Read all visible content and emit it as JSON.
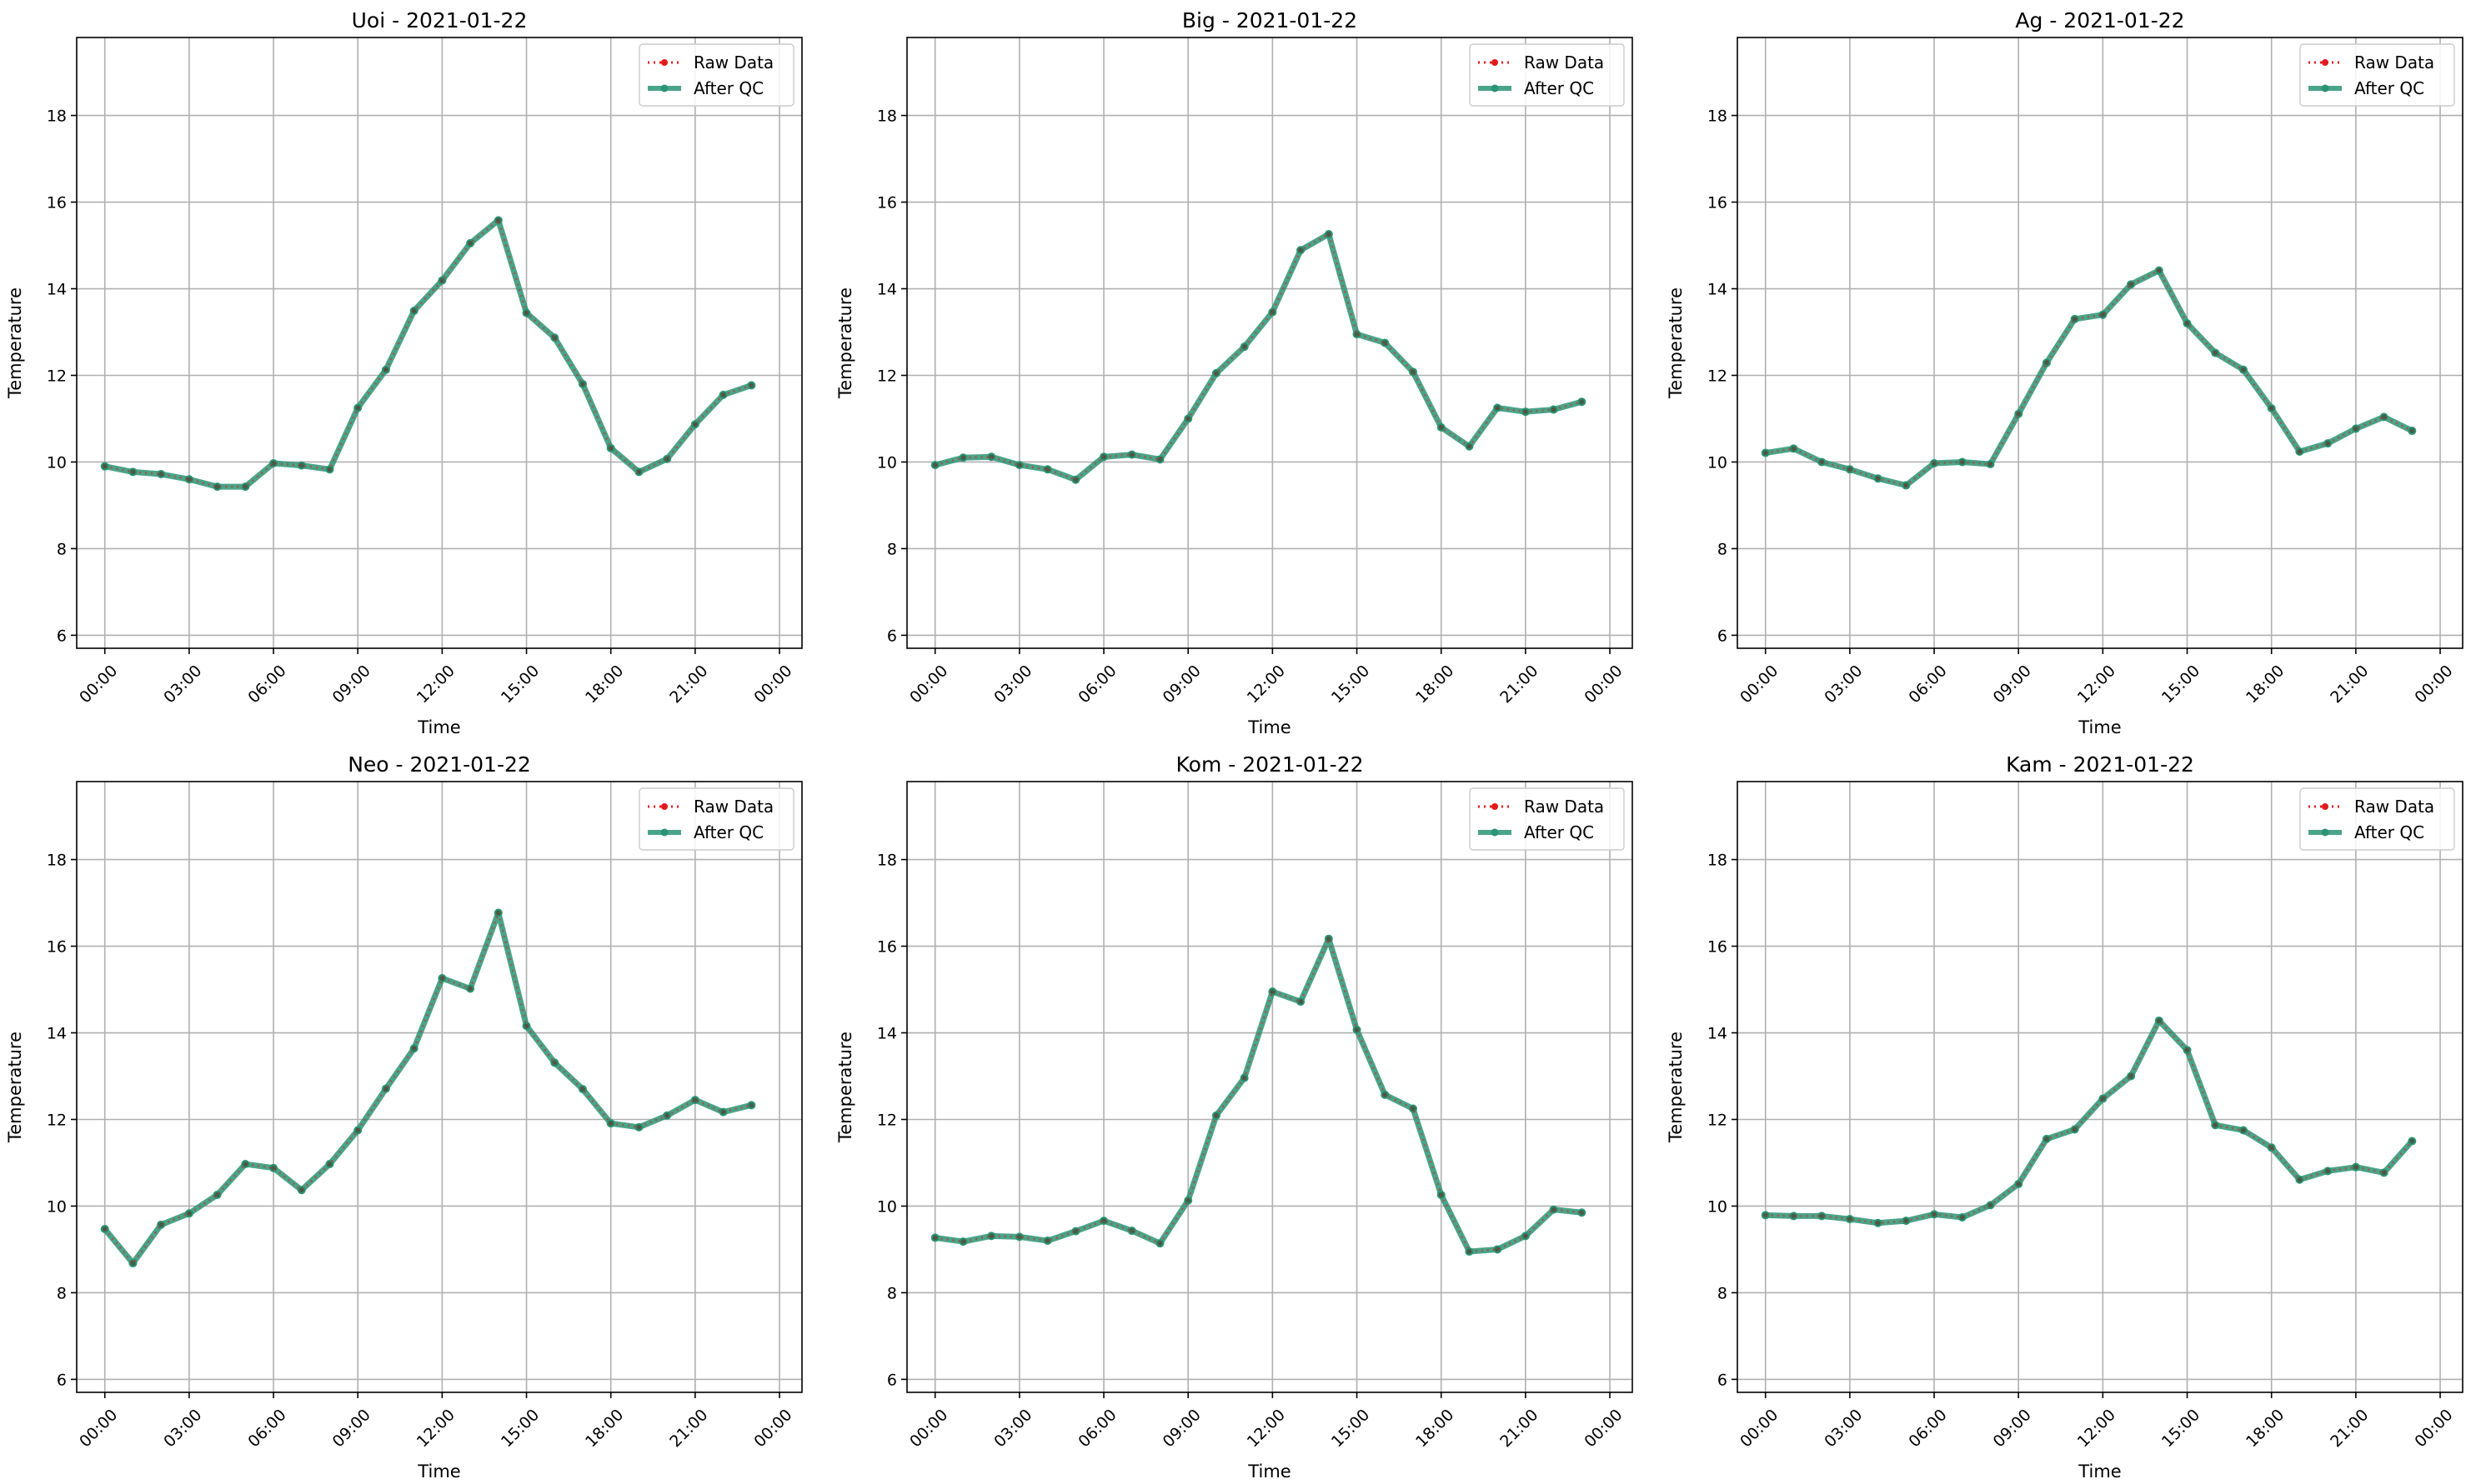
{
  "colors": {
    "raw": "#e31a1c",
    "qc": "#2a9474",
    "grid": "#b0b0b0",
    "axis": "#000000"
  },
  "chart_data": [
    {
      "type": "line",
      "title": "Uoi - 2021-01-22",
      "xlabel": "Time",
      "ylabel": "Temperature",
      "ylim": [
        5.7,
        19.8
      ],
      "yticks": [
        6,
        8,
        10,
        12,
        14,
        16,
        18
      ],
      "xticks": [
        "00:00",
        "03:00",
        "06:00",
        "09:00",
        "12:00",
        "15:00",
        "18:00",
        "21:00",
        "00:00"
      ],
      "x_hours": [
        0,
        1,
        2,
        3,
        4,
        5,
        6,
        7,
        8,
        9,
        10,
        11,
        12,
        13,
        14,
        15,
        16,
        17,
        18,
        19,
        20,
        21,
        22,
        23
      ],
      "grid": true,
      "legend": "top-right",
      "series": [
        {
          "name": "Raw Data",
          "style": "dotted",
          "values": [
            9.9,
            9.77,
            9.72,
            9.6,
            9.43,
            9.43,
            9.97,
            9.92,
            9.83,
            11.25,
            12.13,
            13.49,
            14.19,
            15.05,
            15.58,
            13.44,
            12.87,
            11.8,
            10.32,
            9.77,
            10.07,
            10.87,
            11.55,
            11.77
          ]
        },
        {
          "name": "After QC",
          "style": "solid",
          "values": [
            9.9,
            9.77,
            9.72,
            9.6,
            9.43,
            9.43,
            9.97,
            9.92,
            9.83,
            11.25,
            12.13,
            13.49,
            14.19,
            15.05,
            15.58,
            13.44,
            12.87,
            11.8,
            10.32,
            9.77,
            10.07,
            10.87,
            11.55,
            11.77
          ]
        }
      ]
    },
    {
      "type": "line",
      "title": "Big - 2021-01-22",
      "xlabel": "Time",
      "ylabel": "Temperature",
      "ylim": [
        5.7,
        19.8
      ],
      "yticks": [
        6,
        8,
        10,
        12,
        14,
        16,
        18
      ],
      "xticks": [
        "00:00",
        "03:00",
        "06:00",
        "09:00",
        "12:00",
        "15:00",
        "18:00",
        "21:00",
        "00:00"
      ],
      "x_hours": [
        0,
        1,
        2,
        3,
        4,
        5,
        6,
        7,
        8,
        9,
        10,
        11,
        12,
        13,
        14,
        15,
        16,
        17,
        18,
        19,
        20,
        21,
        22,
        23
      ],
      "grid": true,
      "legend": "top-right",
      "series": [
        {
          "name": "Raw Data",
          "style": "dotted",
          "values": [
            9.93,
            10.1,
            10.12,
            9.93,
            9.83,
            9.59,
            10.12,
            10.17,
            10.06,
            11.0,
            12.05,
            12.66,
            13.46,
            14.89,
            15.26,
            12.95,
            12.75,
            12.08,
            10.8,
            10.36,
            11.25,
            11.16,
            11.21,
            11.39
          ]
        },
        {
          "name": "After QC",
          "style": "solid",
          "values": [
            9.93,
            10.1,
            10.12,
            9.93,
            9.83,
            9.59,
            10.12,
            10.17,
            10.06,
            11.0,
            12.05,
            12.66,
            13.46,
            14.89,
            15.26,
            12.95,
            12.75,
            12.08,
            10.8,
            10.36,
            11.25,
            11.16,
            11.21,
            11.39
          ]
        }
      ]
    },
    {
      "type": "line",
      "title": "Ag - 2021-01-22",
      "xlabel": "Time",
      "ylabel": "Temperature",
      "ylim": [
        5.7,
        19.8
      ],
      "yticks": [
        6,
        8,
        10,
        12,
        14,
        16,
        18
      ],
      "xticks": [
        "00:00",
        "03:00",
        "06:00",
        "09:00",
        "12:00",
        "15:00",
        "18:00",
        "21:00",
        "00:00"
      ],
      "x_hours": [
        0,
        1,
        2,
        3,
        4,
        5,
        6,
        7,
        8,
        9,
        10,
        11,
        12,
        13,
        14,
        15,
        16,
        17,
        18,
        19,
        20,
        21,
        22,
        23
      ],
      "grid": true,
      "legend": "top-right",
      "series": [
        {
          "name": "Raw Data",
          "style": "dotted",
          "values": [
            10.21,
            10.31,
            10.0,
            9.83,
            9.62,
            9.46,
            9.97,
            10.0,
            9.95,
            11.11,
            12.29,
            13.3,
            13.4,
            14.1,
            14.42,
            13.2,
            12.52,
            12.13,
            11.24,
            10.24,
            10.43,
            10.77,
            11.04,
            10.72
          ]
        },
        {
          "name": "After QC",
          "style": "solid",
          "values": [
            10.21,
            10.31,
            10.0,
            9.83,
            9.62,
            9.46,
            9.97,
            10.0,
            9.95,
            11.11,
            12.29,
            13.3,
            13.4,
            14.1,
            14.42,
            13.2,
            12.52,
            12.13,
            11.24,
            10.24,
            10.43,
            10.77,
            11.04,
            10.72
          ]
        }
      ]
    },
    {
      "type": "line",
      "title": "Neo - 2021-01-22",
      "xlabel": "Time",
      "ylabel": "Temperature",
      "ylim": [
        5.7,
        19.8
      ],
      "yticks": [
        6,
        8,
        10,
        12,
        14,
        16,
        18
      ],
      "xticks": [
        "00:00",
        "03:00",
        "06:00",
        "09:00",
        "12:00",
        "15:00",
        "18:00",
        "21:00",
        "00:00"
      ],
      "x_hours": [
        0,
        1,
        2,
        3,
        4,
        5,
        6,
        7,
        8,
        9,
        10,
        11,
        12,
        13,
        14,
        15,
        16,
        17,
        18,
        19,
        20,
        21,
        22,
        23
      ],
      "grid": true,
      "legend": "top-right",
      "series": [
        {
          "name": "Raw Data",
          "style": "dotted",
          "values": [
            9.47,
            8.68,
            9.57,
            9.83,
            10.26,
            10.97,
            10.88,
            10.37,
            10.97,
            11.75,
            12.71,
            13.64,
            15.26,
            15.02,
            16.77,
            14.16,
            13.31,
            12.7,
            11.91,
            11.82,
            12.09,
            12.45,
            12.17,
            12.33
          ]
        },
        {
          "name": "After QC",
          "style": "solid",
          "values": [
            9.47,
            8.68,
            9.57,
            9.83,
            10.26,
            10.97,
            10.88,
            10.37,
            10.97,
            11.75,
            12.71,
            13.64,
            15.26,
            15.02,
            16.77,
            14.16,
            13.31,
            12.7,
            11.91,
            11.82,
            12.09,
            12.45,
            12.17,
            12.33
          ]
        }
      ]
    },
    {
      "type": "line",
      "title": "Kom - 2021-01-22",
      "xlabel": "Time",
      "ylabel": "Temperature",
      "ylim": [
        5.7,
        19.8
      ],
      "yticks": [
        6,
        8,
        10,
        12,
        14,
        16,
        18
      ],
      "xticks": [
        "00:00",
        "03:00",
        "06:00",
        "09:00",
        "12:00",
        "15:00",
        "18:00",
        "21:00",
        "00:00"
      ],
      "x_hours": [
        0,
        1,
        2,
        3,
        4,
        5,
        6,
        7,
        8,
        9,
        10,
        11,
        12,
        13,
        14,
        15,
        16,
        17,
        18,
        19,
        20,
        21,
        22,
        23
      ],
      "grid": true,
      "legend": "top-right",
      "series": [
        {
          "name": "Raw Data",
          "style": "dotted",
          "values": [
            9.27,
            9.18,
            9.31,
            9.29,
            9.2,
            9.42,
            9.66,
            9.43,
            9.14,
            10.13,
            12.09,
            12.96,
            14.95,
            14.72,
            16.17,
            14.07,
            12.57,
            12.25,
            10.26,
            8.95,
            9.0,
            9.31,
            9.92,
            9.85
          ]
        },
        {
          "name": "After QC",
          "style": "solid",
          "values": [
            9.27,
            9.18,
            9.31,
            9.29,
            9.2,
            9.42,
            9.66,
            9.43,
            9.14,
            10.13,
            12.09,
            12.96,
            14.95,
            14.72,
            16.17,
            14.07,
            12.57,
            12.25,
            10.26,
            8.95,
            9.0,
            9.31,
            9.92,
            9.85
          ]
        }
      ]
    },
    {
      "type": "line",
      "title": "Kam - 2021-01-22",
      "xlabel": "Time",
      "ylabel": "Temperature",
      "ylim": [
        5.7,
        19.8
      ],
      "yticks": [
        6,
        8,
        10,
        12,
        14,
        16,
        18
      ],
      "xticks": [
        "00:00",
        "03:00",
        "06:00",
        "09:00",
        "12:00",
        "15:00",
        "18:00",
        "21:00",
        "00:00"
      ],
      "x_hours": [
        0,
        1,
        2,
        3,
        4,
        5,
        6,
        7,
        8,
        9,
        10,
        11,
        12,
        13,
        14,
        15,
        16,
        17,
        18,
        19,
        20,
        21,
        22,
        23
      ],
      "grid": true,
      "legend": "top-right",
      "series": [
        {
          "name": "Raw Data",
          "style": "dotted",
          "values": [
            9.79,
            9.77,
            9.77,
            9.7,
            9.61,
            9.66,
            9.81,
            9.74,
            10.02,
            10.51,
            11.55,
            11.77,
            12.48,
            13.0,
            14.28,
            13.6,
            11.87,
            11.75,
            11.35,
            10.61,
            10.81,
            10.9,
            10.77,
            11.5
          ]
        },
        {
          "name": "After QC",
          "style": "solid",
          "values": [
            9.79,
            9.77,
            9.77,
            9.7,
            9.61,
            9.66,
            9.81,
            9.74,
            10.02,
            10.51,
            11.55,
            11.77,
            12.48,
            13.0,
            14.28,
            13.6,
            11.87,
            11.75,
            11.35,
            10.61,
            10.81,
            10.9,
            10.77,
            11.5
          ]
        }
      ]
    }
  ]
}
